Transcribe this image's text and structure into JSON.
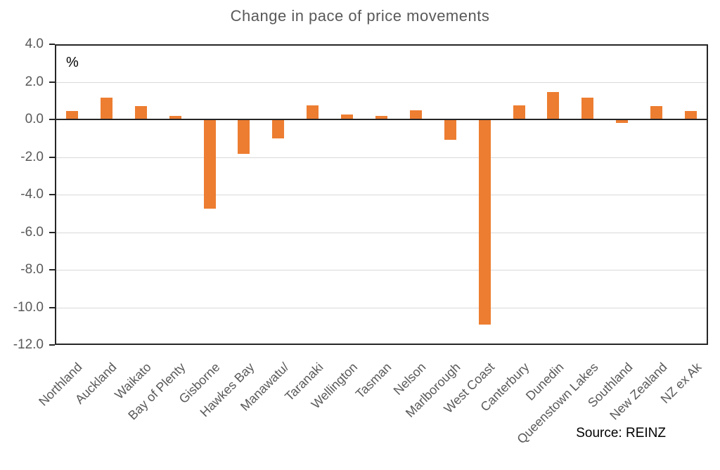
{
  "chart_data": {
    "type": "bar",
    "title": "Change in pace of price movements",
    "unit_label": "%",
    "source": "Source: REINZ",
    "categories": [
      "Northland",
      "Auckland",
      "Waikato",
      "Bay of Plenty",
      "Gisborne",
      "Hawkes Bay",
      "Manawatu/",
      "Taranaki",
      "Wellington",
      "Tasman",
      "Nelson",
      "Marlborough",
      "West Coast",
      "Canterbury",
      "Dunedin",
      "Queenstown Lakes",
      "Southland",
      "New Zealand",
      "NZ ex Ak"
    ],
    "values": [
      0.45,
      1.15,
      0.7,
      0.2,
      -4.75,
      -1.85,
      -1.0,
      0.75,
      0.25,
      0.2,
      0.5,
      -1.1,
      -10.9,
      0.75,
      1.45,
      1.15,
      -0.2,
      0.7,
      0.45
    ],
    "ylabel": "%",
    "xlabel": "",
    "ylim": [
      -12.0,
      4.0
    ],
    "ytick_step": 2.0,
    "yticks": [
      "4.0",
      "2.0",
      "0.0",
      "-2.0",
      "-4.0",
      "-6.0",
      "-8.0",
      "-10.0",
      "-12.0"
    ],
    "grid": true,
    "legend": "none",
    "bar_color": "#ED7D31",
    "gridline_color": "#D9D9D9",
    "axis_color": "#262626",
    "title_color": "#595959",
    "tick_label_color": "#595959",
    "source_color": "#000000"
  }
}
